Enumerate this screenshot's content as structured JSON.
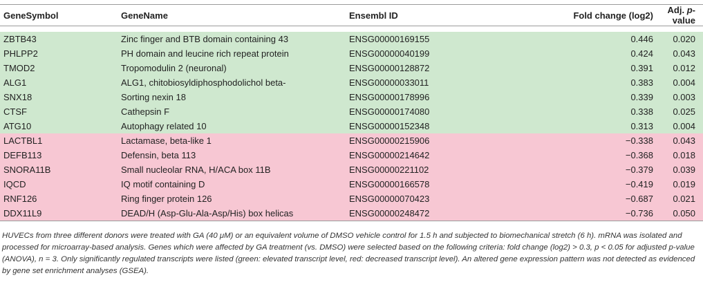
{
  "table": {
    "headers": [
      "GeneSymbol",
      "GeneName",
      "Ensembl ID",
      "Fold change (log2)",
      "Adj. p-value"
    ],
    "rows": [
      {
        "status": "up",
        "symbol": "ZBTB43",
        "name": "Zinc finger and BTB domain containing 43",
        "ensembl": "ENSG00000169155",
        "fold": "0.446",
        "p": "0.020"
      },
      {
        "status": "up",
        "symbol": "PHLPP2",
        "name": "PH domain and leucine rich repeat protein",
        "ensembl": "ENSG00000040199",
        "fold": "0.424",
        "p": "0.043"
      },
      {
        "status": "up",
        "symbol": "TMOD2",
        "name": "Tropomodulin 2 (neuronal)",
        "ensembl": "ENSG00000128872",
        "fold": "0.391",
        "p": "0.012"
      },
      {
        "status": "up",
        "symbol": "ALG1",
        "name": "ALG1, chitobiosyldiphosphodolichol beta-",
        "ensembl": "ENSG00000033011",
        "fold": "0.383",
        "p": "0.004"
      },
      {
        "status": "up",
        "symbol": "SNX18",
        "name": "Sorting nexin 18",
        "ensembl": "ENSG00000178996",
        "fold": "0.339",
        "p": "0.003"
      },
      {
        "status": "up",
        "symbol": "CTSF",
        "name": "Cathepsin F",
        "ensembl": "ENSG00000174080",
        "fold": "0.338",
        "p": "0.025"
      },
      {
        "status": "up",
        "symbol": "ATG10",
        "name": "Autophagy related 10",
        "ensembl": "ENSG00000152348",
        "fold": "0.313",
        "p": "0.004"
      },
      {
        "status": "down",
        "symbol": "LACTBL1",
        "name": "Lactamase, beta-like 1",
        "ensembl": "ENSG00000215906",
        "fold": "−0.338",
        "p": "0.043"
      },
      {
        "status": "down",
        "symbol": "DEFB113",
        "name": "Defensin, beta 113",
        "ensembl": "ENSG00000214642",
        "fold": "−0.368",
        "p": "0.018"
      },
      {
        "status": "down",
        "symbol": "SNORA11B",
        "name": "Small nucleolar RNA, H/ACA box 11B",
        "ensembl": "ENSG00000221102",
        "fold": "−0.379",
        "p": "0.039"
      },
      {
        "status": "down",
        "symbol": "IQCD",
        "name": "IQ motif containing D",
        "ensembl": "ENSG00000166578",
        "fold": "−0.419",
        "p": "0.019"
      },
      {
        "status": "down",
        "symbol": "RNF126",
        "name": "Ring finger protein 126",
        "ensembl": "ENSG00000070423",
        "fold": "−0.687",
        "p": "0.021"
      },
      {
        "status": "down",
        "symbol": "DDX11L9",
        "name": "DEAD/H (Asp-Glu-Ala-Asp/His) box helicas",
        "ensembl": "ENSG00000248472",
        "fold": "−0.736",
        "p": "0.050"
      }
    ]
  },
  "colors": {
    "up": "#cfe8cf",
    "down": "#f7c7d3"
  },
  "footnote": "HUVECs from three different donors were treated with GA (40 μM) or an equivalent volume of DMSO vehicle control for 1.5 h and subjected to biomechanical stretch (6 h). mRNA was isolated and processed for microarray-based analysis. Genes which were affected by GA treatment (vs. DMSO) were selected based on the following criteria: fold change (log2) > 0.3, p < 0.05 for adjusted p-value (ANOVA), n = 3. Only significantly regulated transcripts were listed (green: elevated transcript level, red: decreased transcript level). An altered gene expression pattern was not detected as evidenced by gene set enrichment analyses (GSEA)."
}
